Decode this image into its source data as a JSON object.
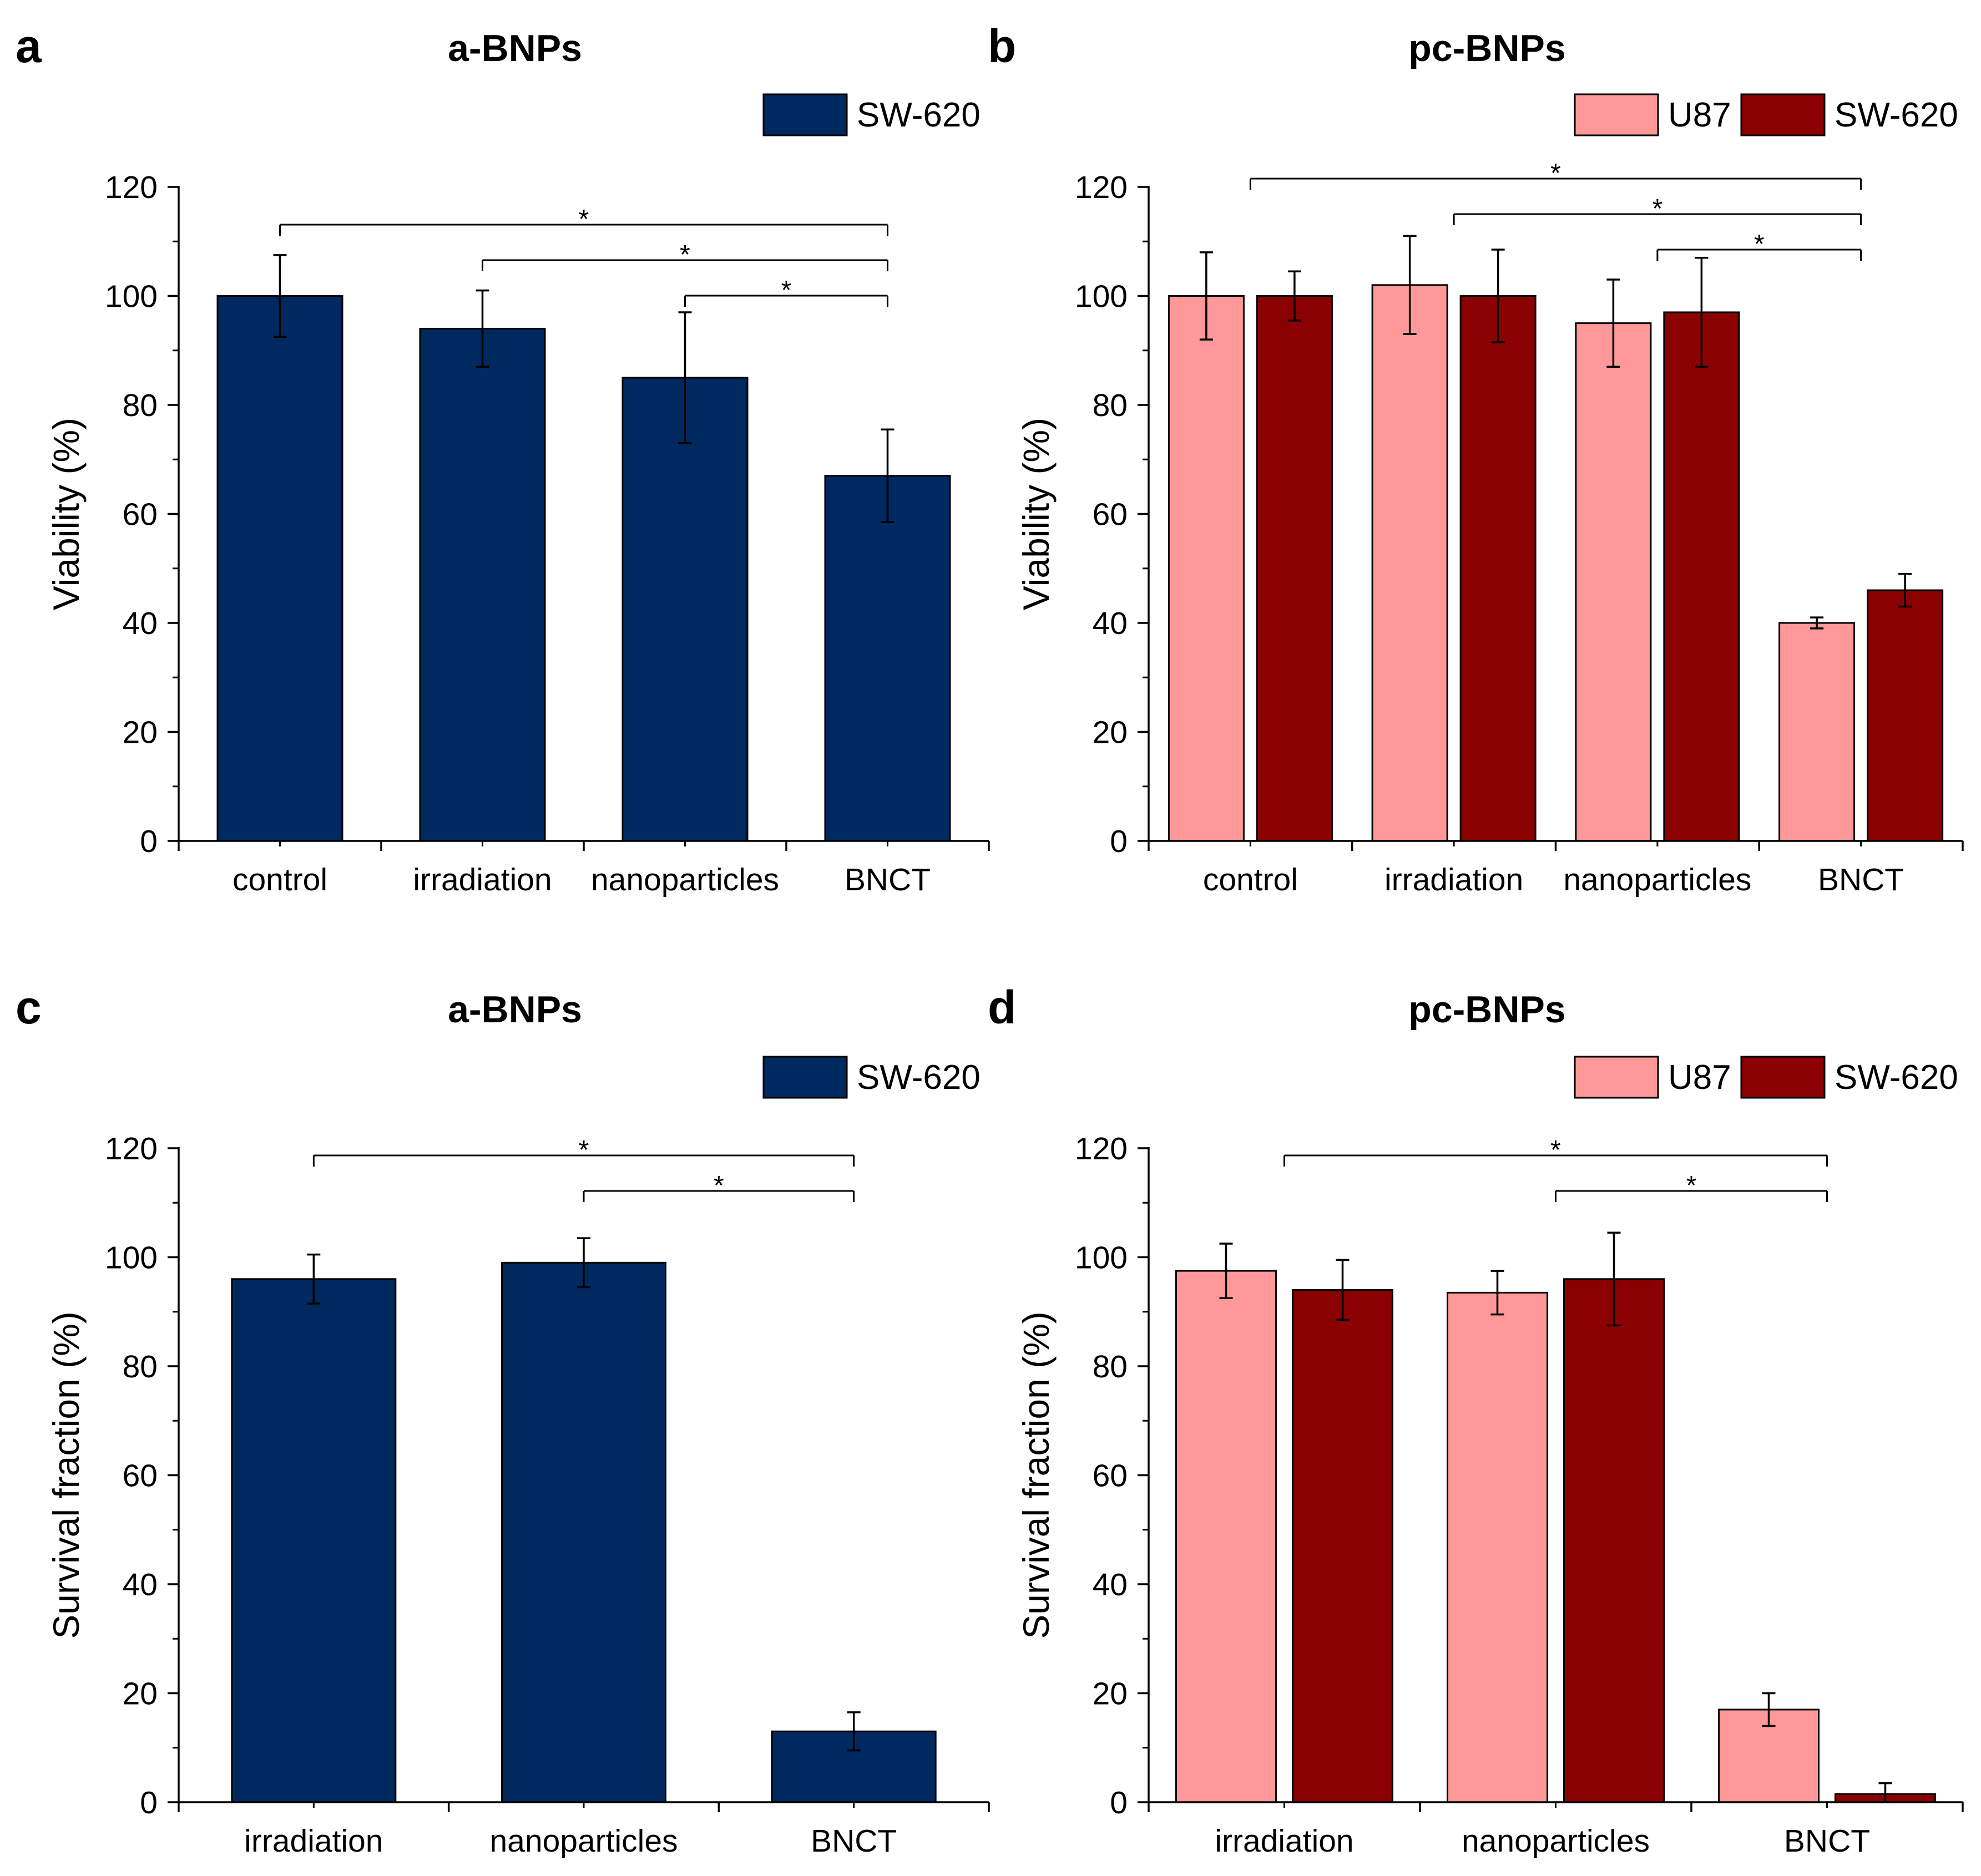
{
  "chart_data": [
    {
      "panel": "a",
      "type": "bar",
      "title": "a-BNPs",
      "xlabel": "",
      "ylabel": "Viability (%)",
      "ylim": [
        0,
        120
      ],
      "yticks": [
        0,
        20,
        40,
        60,
        80,
        100,
        120
      ],
      "categories": [
        "control",
        "irradiation",
        "nanoparticles",
        "BNCT"
      ],
      "series": [
        {
          "name": "SW-620",
          "color": "#002960",
          "values": [
            100,
            94,
            85,
            67
          ],
          "errors": [
            7.5,
            7,
            12,
            8.5
          ]
        }
      ],
      "legend": "top-right",
      "significance": [
        {
          "from": 0,
          "to": 3,
          "label": "*"
        },
        {
          "from": 1,
          "to": 3,
          "label": "*"
        },
        {
          "from": 2,
          "to": 3,
          "label": "*"
        }
      ]
    },
    {
      "panel": "b",
      "type": "bar",
      "title": "pc-BNPs",
      "xlabel": "",
      "ylabel": "Viability (%)",
      "ylim": [
        0,
        120
      ],
      "yticks": [
        0,
        20,
        40,
        60,
        80,
        100,
        120
      ],
      "categories": [
        "control",
        "irradiation",
        "nanoparticles",
        "BNCT"
      ],
      "series": [
        {
          "name": "U87",
          "color": "#FF9999",
          "values": [
            100,
            102,
            95,
            40
          ],
          "errors": [
            8,
            9,
            8,
            1
          ]
        },
        {
          "name": "SW-620",
          "color": "#8B0000",
          "values": [
            100,
            100,
            97,
            46
          ],
          "errors": [
            4.5,
            8.5,
            10,
            3
          ]
        }
      ],
      "legend": "top-right",
      "significance": [
        {
          "from": 0,
          "to": 3,
          "label": "*"
        },
        {
          "from": 1,
          "to": 3,
          "label": "*"
        },
        {
          "from": 2,
          "to": 3,
          "label": "*"
        }
      ]
    },
    {
      "panel": "c",
      "type": "bar",
      "title": "a-BNPs",
      "xlabel": "",
      "ylabel": "Survival fraction (%)",
      "ylim": [
        0,
        120
      ],
      "yticks": [
        0,
        20,
        40,
        60,
        80,
        100,
        120
      ],
      "categories": [
        "irradiation",
        "nanoparticles",
        "BNCT"
      ],
      "series": [
        {
          "name": "SW-620",
          "color": "#002960",
          "values": [
            96,
            99,
            13
          ],
          "errors": [
            4.5,
            4.5,
            3.5
          ]
        }
      ],
      "legend": "top-right",
      "significance": [
        {
          "from": 0,
          "to": 2,
          "label": "*"
        },
        {
          "from": 1,
          "to": 2,
          "label": "*"
        }
      ]
    },
    {
      "panel": "d",
      "type": "bar",
      "title": "pc-BNPs",
      "xlabel": "",
      "ylabel": "Survival fraction (%)",
      "ylim": [
        0,
        120
      ],
      "yticks": [
        0,
        20,
        40,
        60,
        80,
        100,
        120
      ],
      "categories": [
        "irradiation",
        "nanoparticles",
        "BNCT"
      ],
      "series": [
        {
          "name": "U87",
          "color": "#FF9999",
          "values": [
            97.5,
            93.5,
            17
          ],
          "errors": [
            5,
            4,
            3
          ]
        },
        {
          "name": "SW-620",
          "color": "#8B0000",
          "values": [
            94,
            96,
            1.5
          ],
          "errors": [
            5.5,
            8.5,
            2
          ]
        }
      ],
      "legend": "top-right",
      "significance": [
        {
          "from": 0,
          "to": 2,
          "label": "*"
        },
        {
          "from": 1,
          "to": 2,
          "label": "*"
        }
      ]
    }
  ]
}
